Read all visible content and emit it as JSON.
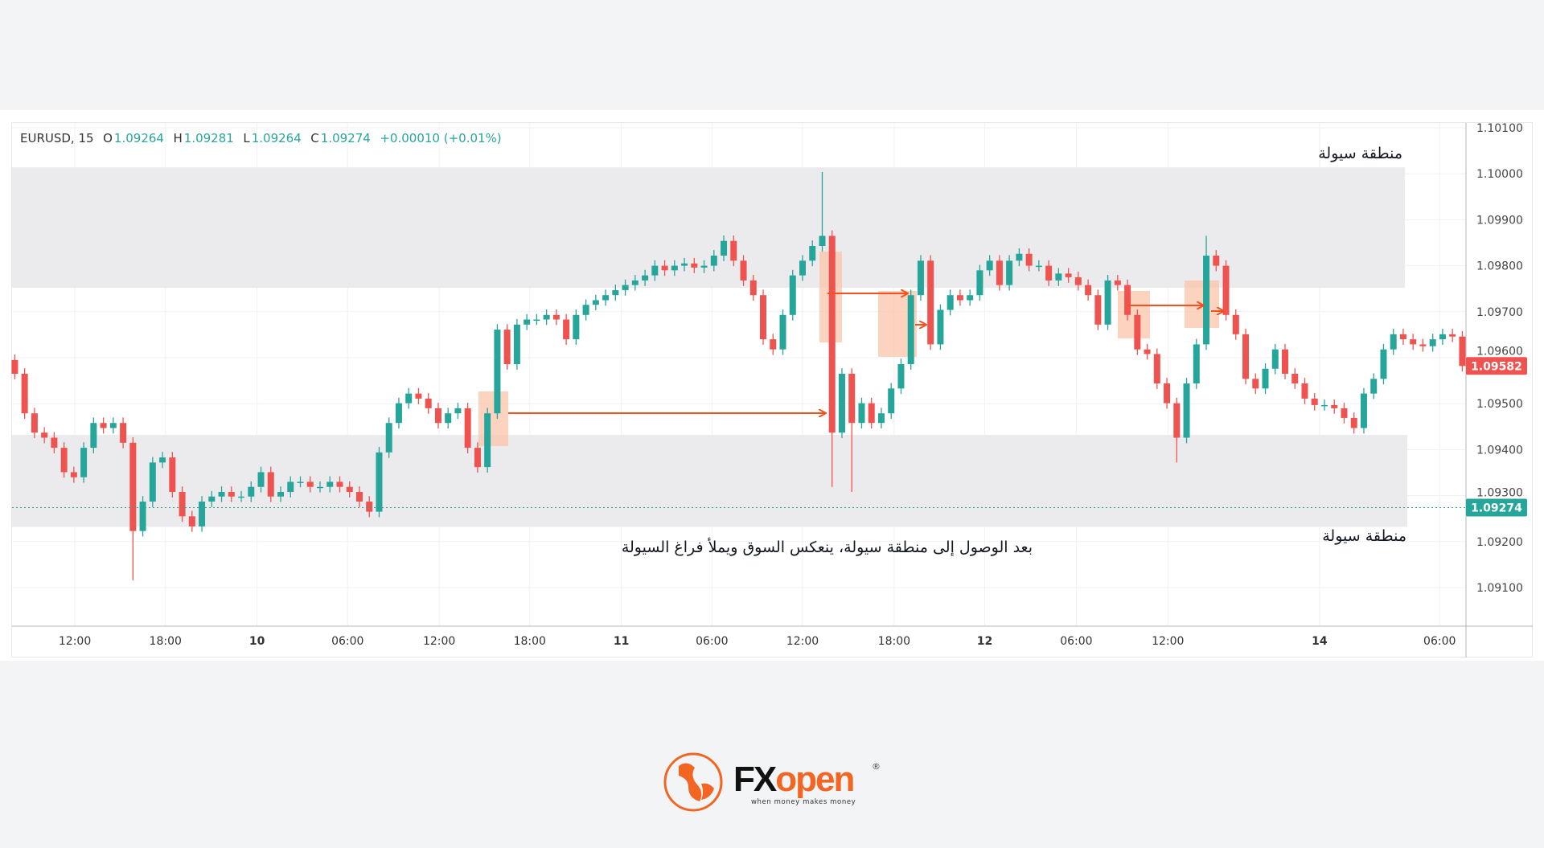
{
  "legend": {
    "symbol": "EURUSD, 15",
    "o_label": "O",
    "o": "1.09264",
    "h_label": "H",
    "h": "1.09281",
    "l_label": "L",
    "l": "1.09264",
    "c_label": "C",
    "c": "1.09274",
    "change": "+0.00010 (+0.01%)"
  },
  "annotations": {
    "top_zone_label": "منطقة سيولة",
    "bottom_zone_label": "منطقة سيولة",
    "caption": "بعد الوصول إلى منطقة سيولة، ينعكس السوق ويملأ فراغ السيولة"
  },
  "logo": {
    "brand_fx": "FX",
    "brand_open": "open",
    "tagline": "when money makes money",
    "registered": "®"
  },
  "colors": {
    "up": "#26a69a",
    "down": "#ef5350",
    "zone": "#ebebed",
    "highlight": "#f9c4a8",
    "arrow": "#f4511e",
    "last_price_bg": "#ef5350",
    "current_price_bg": "#26a69a"
  },
  "chart_data": {
    "type": "candlestick",
    "timeframe": "15",
    "ylim": [
      1.0905,
      1.1012
    ],
    "y_ticks": [
      "1.10100",
      "1.10000",
      "1.09900",
      "1.09800",
      "1.09700",
      "1.09600",
      "1.09500",
      "1.09400",
      "1.09300",
      "1.09200",
      "1.09100"
    ],
    "x_ticks": [
      "12:00",
      "18:00",
      "10",
      "06:00",
      "12:00",
      "18:00",
      "11",
      "06:00",
      "12:00",
      "18:00",
      "12",
      "06:00",
      "12:00",
      "14",
      "06:00"
    ],
    "last_price": "1.09582",
    "current_price": "1.09274",
    "liquidity_zones": [
      {
        "from": 1.09752,
        "to": 1.10014
      },
      {
        "from": 1.09232,
        "to": 1.09432
      }
    ],
    "close": [
      1.09565,
      1.09479,
      1.09437,
      1.09426,
      1.09404,
      1.09351,
      1.0934,
      1.09404,
      1.09458,
      1.09447,
      1.09458,
      1.09415,
      1.09223,
      1.09287,
      1.09372,
      1.09383,
      1.09308,
      1.09255,
      1.09233,
      1.09287,
      1.09298,
      1.09308,
      1.09298,
      1.09298,
      1.09319,
      1.09351,
      1.09298,
      1.09308,
      1.0933,
      1.0933,
      1.09319,
      1.09319,
      1.0933,
      1.09319,
      1.09308,
      1.09287,
      1.09265,
      1.09394,
      1.09458,
      1.09501,
      1.09522,
      1.09511,
      1.0949,
      1.09458,
      1.09479,
      1.0949,
      1.09404,
      1.09362,
      1.09479,
      1.09661,
      1.09586,
      1.09672,
      1.09683,
      1.09683,
      1.09693,
      1.09683,
      1.0964,
      1.09693,
      1.09715,
      1.09725,
      1.09736,
      1.09747,
      1.09758,
      1.09768,
      1.09779,
      1.098,
      1.0979,
      1.098,
      1.09805,
      1.09796,
      1.098,
      1.09822,
      1.09854,
      1.09811,
      1.09768,
      1.09736,
      1.0964,
      1.09618,
      1.09693,
      1.09779,
      1.09811,
      1.09843,
      1.09865,
      1.09437,
      1.09565,
      1.09458,
      1.09501,
      1.09458,
      1.09479,
      1.09533,
      1.09586,
      1.09736,
      1.09811,
      1.09629,
      1.09704,
      1.09736,
      1.09725,
      1.09736,
      1.0979,
      1.09811,
      1.09758,
      1.09811,
      1.09826,
      1.098,
      1.098,
      1.09768,
      1.09783,
      1.09775,
      1.09758,
      1.09736,
      1.09672,
      1.09768,
      1.09758,
      1.09693,
      1.09618,
      1.09608,
      1.09544,
      1.09501,
      1.09426,
      1.09544,
      1.09629,
      1.09822,
      1.098,
      1.09693,
      1.09651,
      1.09554,
      1.09533,
      1.09576,
      1.09618,
      1.09565,
      1.09544,
      1.09511,
      1.09497,
      1.09497,
      1.0949,
      1.09469,
      1.09447,
      1.09522,
      1.09554,
      1.09618,
      1.09651,
      1.0964,
      1.09629,
      1.09625,
      1.0964,
      1.09651,
      1.09646,
      1.09582
    ],
    "wick_extremes": [
      {
        "bar": 12,
        "low": 1.09116
      },
      {
        "bar": 82,
        "high": 1.10004
      },
      {
        "bar": 83,
        "low": 1.09319
      },
      {
        "bar": 85,
        "low": 1.09308
      },
      {
        "bar": 118,
        "low": 1.09372
      },
      {
        "bar": 121,
        "high": 1.09865
      }
    ]
  }
}
